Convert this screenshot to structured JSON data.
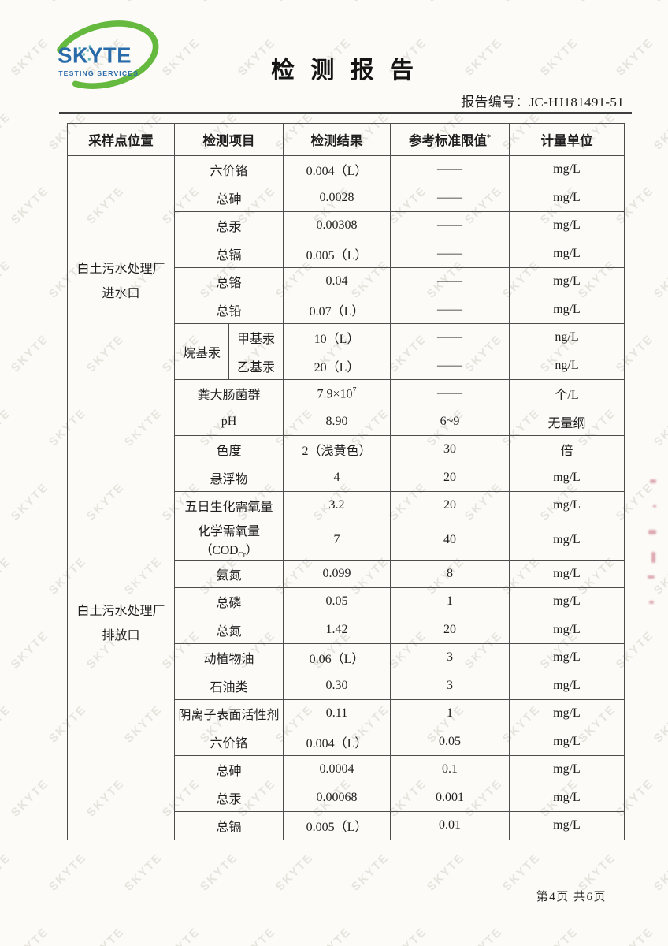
{
  "colors": {
    "logo_blue": "#2a6ca9",
    "logo_teal": "#35a3a8",
    "logo_green": "#66b93f",
    "watermark": "#d6d3ca"
  },
  "logo": {
    "name": "SKYTE",
    "subtitle": "TESTING SERVICES"
  },
  "header": {
    "title": "检 测 报 告",
    "report_no_label": "报告编号：",
    "report_no": "JC-HJ181491-51"
  },
  "watermark": {
    "text": "SKYTE"
  },
  "table": {
    "headers": {
      "location": "采样点位置",
      "item": "检测项目",
      "result": "检测结果",
      "limit": "参考标准限值",
      "limit_sup": "*",
      "unit": "计量单位"
    },
    "sections": [
      {
        "location_lines": [
          "白土污水处理厂",
          "进水口"
        ],
        "rows": [
          {
            "item": "六价铬",
            "result": "0.004（L）",
            "limit": "——",
            "unit": "mg/L"
          },
          {
            "item": "总砷",
            "result": "0.0028",
            "limit": "——",
            "unit": "mg/L"
          },
          {
            "item": "总汞",
            "result": "0.00308",
            "limit": "——",
            "unit": "mg/L"
          },
          {
            "item": "总镉",
            "result": "0.005（L）",
            "limit": "——",
            "unit": "mg/L"
          },
          {
            "item": "总铬",
            "result": "0.04",
            "limit": "——",
            "unit": "mg/L"
          },
          {
            "item": "总铅",
            "result": "0.07（L）",
            "limit": "——",
            "unit": "mg/L"
          },
          {
            "group": "烷基汞",
            "group_span": 2,
            "item": "甲基汞",
            "result": "10（L）",
            "limit": "——",
            "unit": "ng/L"
          },
          {
            "in_group": true,
            "item": "乙基汞",
            "result": "20（L）",
            "limit": "——",
            "unit": "ng/L"
          },
          {
            "item": "粪大肠菌群",
            "result": "7.9×10^{7}",
            "limit": "——",
            "unit": "个/L"
          }
        ]
      },
      {
        "location_lines": [
          "白土污水处理厂",
          "排放口"
        ],
        "rows": [
          {
            "item": "pH",
            "result": "8.90",
            "limit": "6~9",
            "unit": "无量纲"
          },
          {
            "item": "色度",
            "result": "2（浅黄色）",
            "limit": "30",
            "unit": "倍"
          },
          {
            "item": "悬浮物",
            "result": "4",
            "limit": "20",
            "unit": "mg/L"
          },
          {
            "item": "五日生化需氧量",
            "result": "3.2",
            "limit": "20",
            "unit": "mg/L"
          },
          {
            "item": "化学需氧量（COD_{Cr}）",
            "result": "7",
            "limit": "40",
            "unit": "mg/L"
          },
          {
            "item": "氨氮",
            "result": "0.099",
            "limit": "8",
            "unit": "mg/L"
          },
          {
            "item": "总磷",
            "result": "0.05",
            "limit": "1",
            "unit": "mg/L"
          },
          {
            "item": "总氮",
            "result": "1.42",
            "limit": "20",
            "unit": "mg/L"
          },
          {
            "item": "动植物油",
            "result": "0.06（L）",
            "limit": "3",
            "unit": "mg/L"
          },
          {
            "item": "石油类",
            "result": "0.30",
            "limit": "3",
            "unit": "mg/L"
          },
          {
            "item": "阴离子表面活性剂",
            "result": "0.11",
            "limit": "1",
            "unit": "mg/L"
          },
          {
            "item": "六价铬",
            "result": "0.004（L）",
            "limit": "0.05",
            "unit": "mg/L"
          },
          {
            "item": "总砷",
            "result": "0.0004",
            "limit": "0.1",
            "unit": "mg/L"
          },
          {
            "item": "总汞",
            "result": "0.00068",
            "limit": "0.001",
            "unit": "mg/L"
          },
          {
            "item": "总镉",
            "result": "0.005（L）",
            "limit": "0.01",
            "unit": "mg/L"
          }
        ]
      }
    ]
  },
  "page": {
    "footer": "第4页 共6页"
  }
}
